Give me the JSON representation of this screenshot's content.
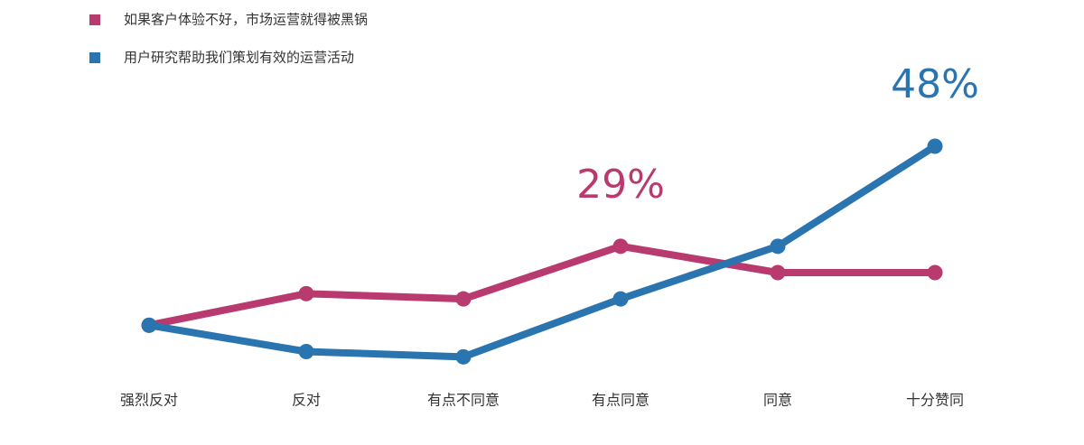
{
  "chart_data": {
    "type": "line",
    "categories": [
      "强烈反对",
      "反对",
      "有点不同意",
      "有点同意",
      "同意",
      "十分赞同"
    ],
    "series": [
      {
        "name": "如果客户体验不好，市场运营就得被黑锅",
        "color": "#b93a6e",
        "values": [
          14,
          20,
          19,
          29,
          24,
          24
        ],
        "value_labels": [
          null,
          null,
          null,
          "29%",
          null,
          null
        ]
      },
      {
        "name": "用户研究帮助我们策划有效的运营活动",
        "color": "#2a74b0",
        "values": [
          14,
          9,
          8,
          19,
          29,
          48
        ],
        "value_labels": [
          null,
          null,
          null,
          null,
          null,
          "48%"
        ]
      }
    ],
    "legend": "top-left"
  }
}
